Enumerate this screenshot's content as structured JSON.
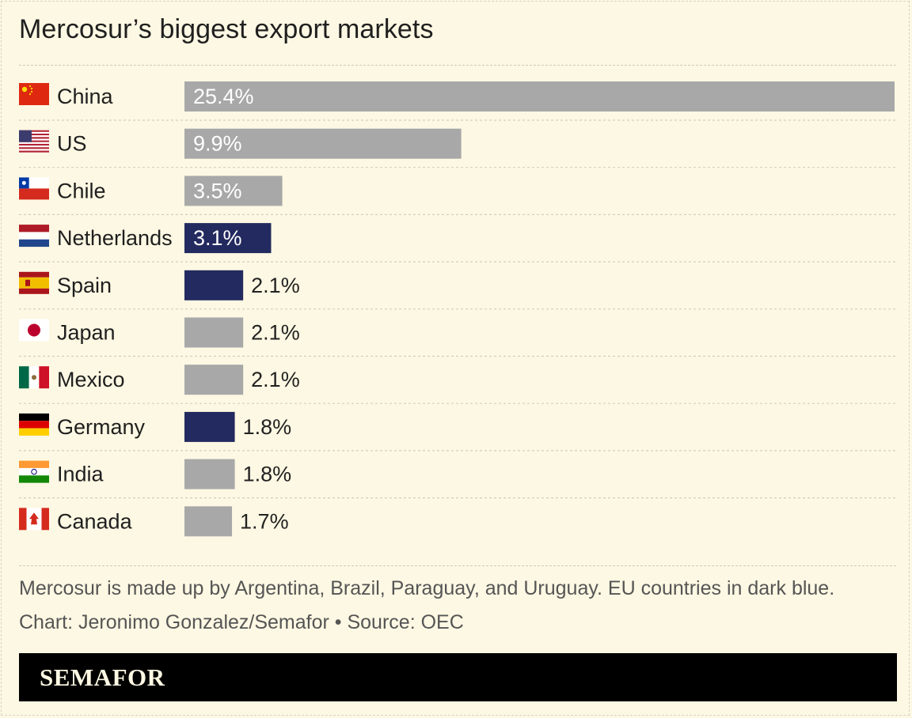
{
  "title": "Mercosur’s biggest export markets",
  "note": "Mercosur is made up by Argentina, Brazil, Paraguay, and Uruguay. EU countries in dark blue.",
  "credit": "Chart: Jeronimo Gonzalez/Semafor • Source: OEC",
  "brand": "SEMAFOR",
  "colors": {
    "background": "#fdf8e3",
    "non_eu_bar": "#a8a8a8",
    "eu_bar": "#222a5f",
    "label_inside": "#ffffff",
    "label_outside": "#222222"
  },
  "chart_data": {
    "type": "bar",
    "orientation": "horizontal",
    "title": "Mercosur’s biggest export markets",
    "categories": [
      "China",
      "US",
      "Chile",
      "Netherlands",
      "Spain",
      "Japan",
      "Mexico",
      "Germany",
      "India",
      "Canada"
    ],
    "values": [
      25.4,
      9.9,
      3.5,
      3.1,
      2.1,
      2.1,
      2.1,
      1.8,
      1.8,
      1.7
    ],
    "value_labels": [
      "25.4%",
      "9.9%",
      "3.5%",
      "3.1%",
      "2.1%",
      "2.1%",
      "2.1%",
      "1.8%",
      "1.8%",
      "1.7%"
    ],
    "eu_member": [
      false,
      false,
      false,
      true,
      true,
      false,
      false,
      true,
      false,
      false
    ],
    "flags": [
      "china-flag-icon",
      "us-flag-icon",
      "chile-flag-icon",
      "netherlands-flag-icon",
      "spain-flag-icon",
      "japan-flag-icon",
      "mexico-flag-icon",
      "germany-flag-icon",
      "india-flag-icon",
      "canada-flag-icon"
    ],
    "xlim": [
      0,
      25.4
    ],
    "grid": false,
    "legend": "none"
  }
}
